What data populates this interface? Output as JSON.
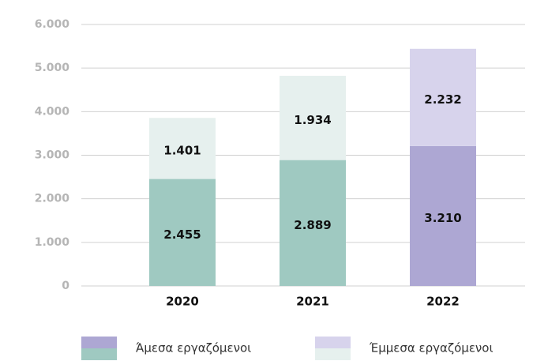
{
  "chart_data": {
    "type": "stacked-bar",
    "categories": [
      "2020",
      "2021",
      "2022"
    ],
    "series": [
      {
        "name": "Άμεσα εργαζόμενοι",
        "colors": [
          "#9fc9c1",
          "#9fc9c1",
          "#ada7d3"
        ],
        "values": [
          2455,
          2889,
          3210
        ],
        "value_labels": [
          "2.455",
          "2.889",
          "3.210"
        ]
      },
      {
        "name": "Έμμεσα εργαζόμενοι",
        "colors": [
          "#e6f0ee",
          "#e6f0ee",
          "#d7d3ec"
        ],
        "values": [
          1401,
          1934,
          2232
        ],
        "value_labels": [
          "1.401",
          "1.934",
          "2.232"
        ]
      }
    ],
    "ylim": [
      0,
      6000
    ],
    "yticks": [
      0,
      {
        "value": 1000,
        "label": "1.000"
      },
      {
        "value": 2000,
        "label": "2.000"
      },
      {
        "value": 3000,
        "label": "3.000"
      },
      {
        "value": 4000,
        "label": "4.000"
      },
      {
        "value": 5000,
        "label": "5.000"
      },
      {
        "value": 6000,
        "label": "6.000"
      }
    ],
    "grid": true,
    "legend": "bottom"
  }
}
